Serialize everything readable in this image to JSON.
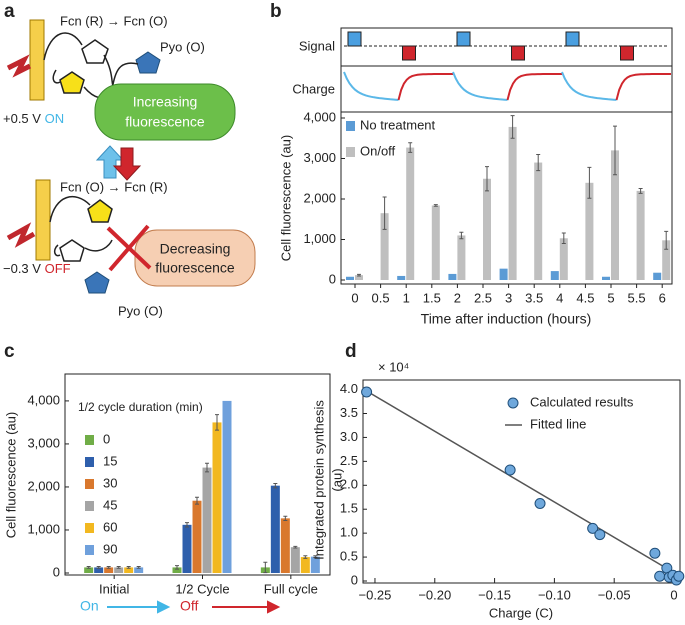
{
  "diagram": {
    "panel": "a",
    "fcn_top": "Fcn (R) → Fcn (O)",
    "pyo_top": "Pyo (O)",
    "voltage_on": "+0.5 V",
    "on": "ON",
    "increasing": [
      "Increasing",
      "fluorescence"
    ],
    "fcn_bottom": "Fcn (O) → Fcn (R)",
    "voltage_off": "−0.3 V",
    "off": "OFF",
    "decreasing": [
      "Decreasing",
      "fluorescence"
    ],
    "pyo_bottom": "Pyo (O)"
  },
  "chart_data": [
    {
      "type": "bar",
      "panel": "b",
      "signal_label": "Signal",
      "charge_label": "Charge",
      "xlabel": "Time after induction (hours)",
      "ylabel": "Cell fluorescence (au)",
      "categories": [
        "0",
        "0.5",
        "1",
        "1.5",
        "2",
        "2.5",
        "3",
        "3.5",
        "4",
        "4.5",
        "5",
        "5.5",
        "6"
      ],
      "series": [
        {
          "name": "No treatment",
          "color": "#5b9bd5",
          "values": [
            80,
            null,
            100,
            null,
            150,
            null,
            280,
            null,
            220,
            null,
            80,
            null,
            180
          ]
        },
        {
          "name": "On/off",
          "color": "#bfbfbf",
          "values": [
            120,
            1650,
            3270,
            1840,
            1100,
            2500,
            3780,
            2900,
            1030,
            2400,
            3200,
            2200,
            980
          ],
          "errors": [
            20,
            400,
            120,
            20,
            80,
            300,
            280,
            200,
            130,
            380,
            600,
            60,
            220
          ]
        }
      ],
      "ylim": [
        0,
        4000
      ],
      "yticks": [
        0,
        {
          "value": 1000,
          "label": "1,000"
        },
        {
          "value": 2000,
          "label": "2,000"
        },
        {
          "value": 3000,
          "label": "3,000"
        },
        {
          "value": 4000,
          "label": "4,000"
        }
      ]
    },
    {
      "type": "bar",
      "panel": "c",
      "ylabel": "Cell fluorescence (au)",
      "legend_title": "1/2 cycle duration (min)",
      "categories": [
        "Initial",
        "1/2 Cycle",
        "Full cycle"
      ],
      "on_label": "On",
      "off_label": "Off",
      "series": [
        {
          "name": "0",
          "color": "#70ad47",
          "values": [
            130,
            130,
            130
          ],
          "errors": [
            20,
            40,
            120
          ]
        },
        {
          "name": "15",
          "color": "#2e5fac",
          "values": [
            130,
            1120,
            2030
          ],
          "errors": [
            20,
            50,
            50
          ]
        },
        {
          "name": "30",
          "color": "#d9782d",
          "values": [
            130,
            1680,
            1270
          ],
          "errors": [
            20,
            80,
            50
          ]
        },
        {
          "name": "45",
          "color": "#a5a5a5",
          "values": [
            130,
            2450,
            600
          ],
          "errors": [
            20,
            100,
            20
          ]
        },
        {
          "name": "60",
          "color": "#f2b820",
          "values": [
            130,
            3500,
            370
          ],
          "errors": [
            20,
            180,
            30
          ]
        },
        {
          "name": "90",
          "color": "#6fa0dc",
          "values": [
            130,
            4000,
            380
          ],
          "errors": [
            20,
            0,
            20
          ]
        }
      ],
      "ylim": [
        0,
        4300
      ],
      "yticks": [
        0,
        {
          "value": 1000,
          "label": "1,000"
        },
        {
          "value": 2000,
          "label": "2,000"
        },
        {
          "value": 3000,
          "label": "3,000"
        },
        {
          "value": 4000,
          "label": "4,000"
        }
      ]
    },
    {
      "type": "scatter",
      "panel": "d",
      "xlabel": "Charge (C)",
      "ylabel": [
        "Integrated protein synthesis",
        "(au)"
      ],
      "y_multiplier": "× 10⁴",
      "series": [
        {
          "name": "Calculated results",
          "mode": "markers",
          "color": "#6fa8dc",
          "x": [
            -0.257,
            -0.137,
            -0.112,
            -0.068,
            -0.062,
            -0.016,
            -0.012,
            -0.006,
            -0.004,
            -0.001,
            0.002,
            0.004
          ],
          "y": [
            3.95,
            2.32,
            1.62,
            1.1,
            0.97,
            0.58,
            0.1,
            0.27,
            0.08,
            0.12,
            0.02,
            0.1
          ]
        },
        {
          "name": "Fitted line",
          "mode": "line",
          "color": "#555555",
          "x": [
            -0.257,
            0.005
          ],
          "y": [
            3.97,
            0.1
          ]
        }
      ],
      "xlim": [
        -0.26,
        0.005
      ],
      "ylim": [
        0,
        4.2
      ],
      "xticks": [
        {
          "value": -0.25,
          "label": "−0.25"
        },
        {
          "value": -0.2,
          "label": "−0.20"
        },
        {
          "value": -0.15,
          "label": "−0.15"
        },
        {
          "value": -0.1,
          "label": "−0.10"
        },
        {
          "value": -0.05,
          "label": "−0.05"
        },
        0
      ],
      "yticks": [
        0,
        0.5,
        {
          "value": 1,
          "label": "1.0"
        },
        1.5,
        {
          "value": 2,
          "label": "2.0"
        },
        2.5,
        {
          "value": 3,
          "label": "3.0"
        },
        3.5,
        {
          "value": 4,
          "label": "4.0"
        }
      ]
    }
  ]
}
